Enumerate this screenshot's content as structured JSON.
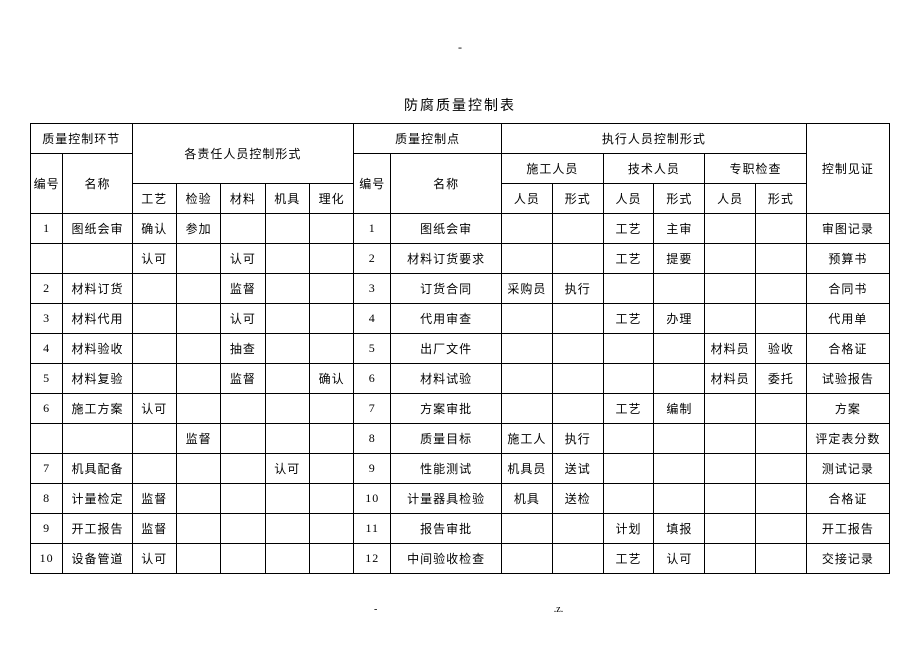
{
  "dash_top": "-",
  "title": "防腐质量控制表",
  "footer_left": "-",
  "footer_right": ".z.",
  "headers": {
    "quality_control_link": "质量控制环节",
    "responsible_personnel": "各责任人员控制形式",
    "quality_control_point": "质量控制点",
    "execution_personnel": "执行人员控制形式",
    "control_witness": "控制见证",
    "num": "编号",
    "name": "名称",
    "craft": "工艺",
    "inspection": "检验",
    "material": "材料",
    "equipment": "机具",
    "physical": "理化",
    "num2": "编号",
    "name2": "名称",
    "construction_personnel": "施工人员",
    "technical_personnel": "技术人员",
    "dedicated_inspection": "专职检查",
    "person": "人员",
    "form": "形式"
  },
  "rows": [
    {
      "num": "1",
      "name": "图纸会审",
      "craft": "确认",
      "inspection": "参加",
      "material": "",
      "equipment": "",
      "physical": "",
      "num2": "1",
      "name2": "图纸会审",
      "p1": "",
      "f1": "",
      "p2": "工艺",
      "f2": "主审",
      "p3": "",
      "f3": "",
      "witness": "审图记录"
    },
    {
      "num": "",
      "name": "",
      "craft": "认可",
      "inspection": "",
      "material": "认可",
      "equipment": "",
      "physical": "",
      "num2": "2",
      "name2": "材料订货要求",
      "p1": "",
      "f1": "",
      "p2": "工艺",
      "f2": "提要",
      "p3": "",
      "f3": "",
      "witness": "预算书"
    },
    {
      "num": "2",
      "name": "材料订货",
      "craft": "",
      "inspection": "",
      "material": "监督",
      "equipment": "",
      "physical": "",
      "num2": "3",
      "name2": "订货合同",
      "p1": "采购员",
      "f1": "执行",
      "p2": "",
      "f2": "",
      "p3": "",
      "f3": "",
      "witness": "合同书"
    },
    {
      "num": "3",
      "name": "材料代用",
      "craft": "",
      "inspection": "",
      "material": "认可",
      "equipment": "",
      "physical": "",
      "num2": "4",
      "name2": "代用审查",
      "p1": "",
      "f1": "",
      "p2": "工艺",
      "f2": "办理",
      "p3": "",
      "f3": "",
      "witness": "代用单"
    },
    {
      "num": "4",
      "name": "材料验收",
      "craft": "",
      "inspection": "",
      "material": "抽查",
      "equipment": "",
      "physical": "",
      "num2": "5",
      "name2": "出厂文件",
      "p1": "",
      "f1": "",
      "p2": "",
      "f2": "",
      "p3": "材料员",
      "f3": "验收",
      "witness": "合格证"
    },
    {
      "num": "5",
      "name": "材料复验",
      "craft": "",
      "inspection": "",
      "material": "监督",
      "equipment": "",
      "physical": "确认",
      "num2": "6",
      "name2": "材料试验",
      "p1": "",
      "f1": "",
      "p2": "",
      "f2": "",
      "p3": "材料员",
      "f3": "委托",
      "witness": "试验报告"
    },
    {
      "num": "6",
      "name": "施工方案",
      "craft": "认可",
      "inspection": "",
      "material": "",
      "equipment": "",
      "physical": "",
      "num2": "7",
      "name2": "方案审批",
      "p1": "",
      "f1": "",
      "p2": "工艺",
      "f2": "编制",
      "p3": "",
      "f3": "",
      "witness": "方案"
    },
    {
      "num": "",
      "name": "",
      "craft": "",
      "inspection": "监督",
      "material": "",
      "equipment": "",
      "physical": "",
      "num2": "8",
      "name2": "质量目标",
      "p1": "施工人",
      "f1": "执行",
      "p2": "",
      "f2": "",
      "p3": "",
      "f3": "",
      "witness": "评定表分数"
    },
    {
      "num": "7",
      "name": "机具配备",
      "craft": "",
      "inspection": "",
      "material": "",
      "equipment": "认可",
      "physical": "",
      "num2": "9",
      "name2": "性能测试",
      "p1": "机具员",
      "f1": "送试",
      "p2": "",
      "f2": "",
      "p3": "",
      "f3": "",
      "witness": "测试记录"
    },
    {
      "num": "8",
      "name": "计量检定",
      "craft": "监督",
      "inspection": "",
      "material": "",
      "equipment": "",
      "physical": "",
      "num2": "10",
      "name2": "计量器具检验",
      "p1": "机具",
      "f1": "送检",
      "p2": "",
      "f2": "",
      "p3": "",
      "f3": "",
      "witness": "合格证"
    },
    {
      "num": "9",
      "name": "开工报告",
      "craft": "监督",
      "inspection": "",
      "material": "",
      "equipment": "",
      "physical": "",
      "num2": "11",
      "name2": "报告审批",
      "p1": "",
      "f1": "",
      "p2": "计划",
      "f2": "填报",
      "p3": "",
      "f3": "",
      "witness": "开工报告"
    },
    {
      "num": "10",
      "name": "设备管道",
      "craft": "认可",
      "inspection": "",
      "material": "",
      "equipment": "",
      "physical": "",
      "num2": "12",
      "name2": "中间验收检查",
      "p1": "",
      "f1": "",
      "p2": "工艺",
      "f2": "认可",
      "p3": "",
      "f3": "",
      "witness": "交接记录"
    }
  ]
}
